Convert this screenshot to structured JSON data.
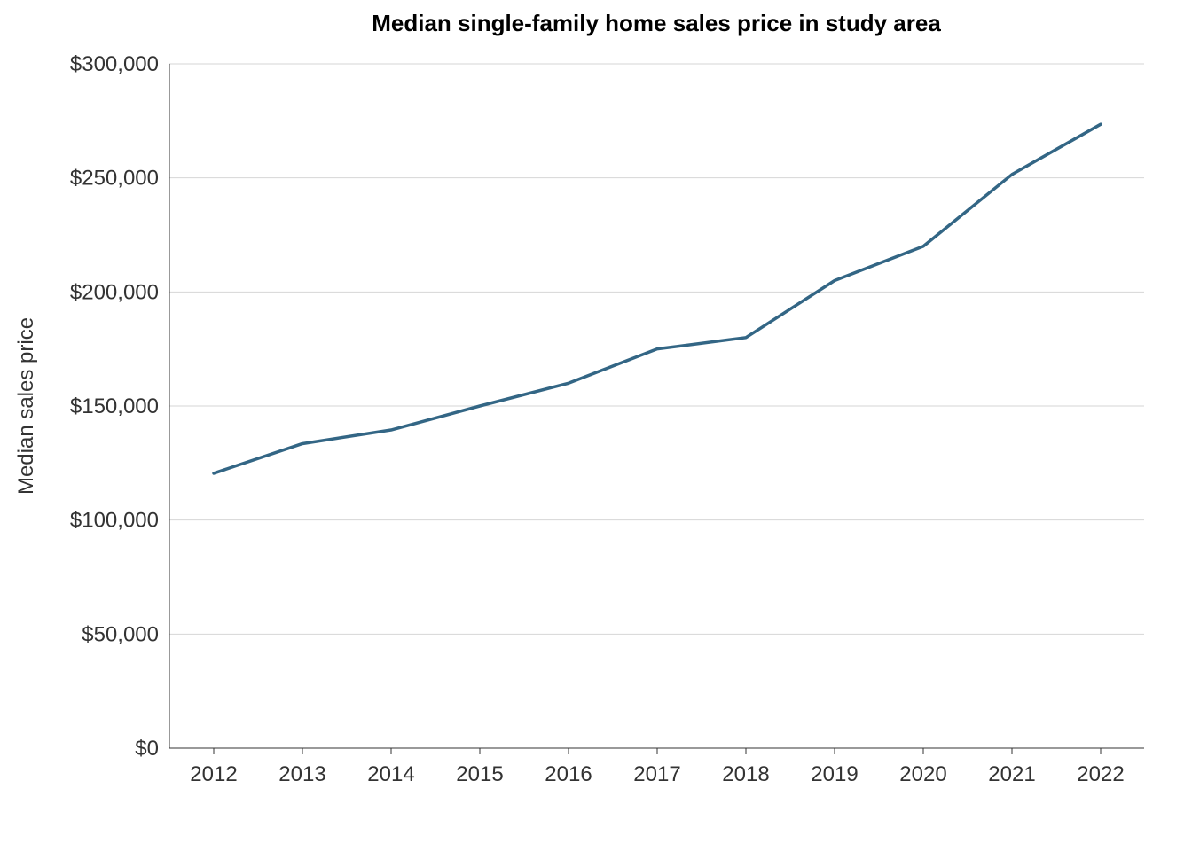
{
  "chart_data": {
    "type": "line",
    "title": "Median single-family home sales price in study area",
    "xlabel": "",
    "ylabel": "Median sales price",
    "x": [
      2012,
      2013,
      2014,
      2015,
      2016,
      2017,
      2018,
      2019,
      2020,
      2021,
      2022
    ],
    "series": [
      {
        "values": [
          120500,
          133500,
          139500,
          150000,
          160000,
          175000,
          180000,
          205000,
          220000,
          251500,
          273500
        ],
        "color": "#336685"
      }
    ],
    "ylim": [
      0,
      300000
    ],
    "yticks": [
      0,
      50000,
      100000,
      150000,
      200000,
      250000,
      300000
    ],
    "ytick_labels": [
      "$0",
      "$50,000",
      "$100,000",
      "$150,000",
      "$200,000",
      "$250,000",
      "$300,000"
    ],
    "xtick_labels": [
      "2012",
      "2013",
      "2014",
      "2015",
      "2016",
      "2017",
      "2018",
      "2019",
      "2020",
      "2021",
      "2022"
    ],
    "grid": "horizontal",
    "legend": "none"
  }
}
